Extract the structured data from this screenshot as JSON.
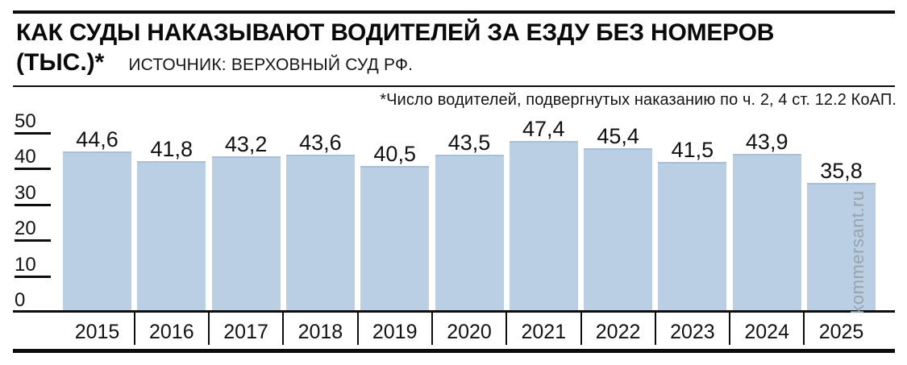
{
  "header": {
    "title_line1": "КАК СУДЫ НАКАЗЫВАЮТ ВОДИТЕЛЕЙ ЗА ЕЗДУ БЕЗ НОМЕРОВ",
    "title_unit": "(ТЫС.)*",
    "source": "ИСТОЧНИК: ВЕРХОВНЫЙ СУД РФ."
  },
  "footnote": "*Число водителей, подвергнутых наказанию по ч. 2, 4 ст. 12.2 КоАП.",
  "watermark": "kommersant.ru",
  "colors": {
    "bar_fill": "#bacfe4",
    "bar_edge": "#a8c0d7",
    "rule": "#0d0d0d",
    "text": "#111111",
    "watermark": "#98a3ac"
  },
  "chart_data": {
    "type": "bar",
    "title": "КАК СУДЫ НАКАЗЫВАЮТ ВОДИТЕЛЕЙ ЗА ЕЗДУ БЕЗ НОМЕРОВ (ТЫС.)*",
    "source": "ИСТОЧНИК: ВЕРХОВНЫЙ СУД РФ.",
    "note": "*Число водителей, подвергнутых наказанию по ч. 2, 4 ст. 12.2 КоАП.",
    "categories": [
      "2015",
      "2016",
      "2017",
      "2018",
      "2019",
      "2020",
      "2021",
      "2022",
      "2023",
      "2024",
      "2025"
    ],
    "values": [
      44.6,
      41.8,
      43.2,
      43.6,
      40.5,
      43.5,
      47.4,
      45.4,
      41.5,
      43.9,
      35.8
    ],
    "value_labels": [
      "44,6",
      "41,8",
      "43,2",
      "43,6",
      "40,5",
      "43,5",
      "47,4",
      "45,4",
      "41,5",
      "43,9",
      "35,8"
    ],
    "xlabel": "",
    "ylabel": "",
    "ylim": [
      0,
      50
    ],
    "yticks": [
      0,
      10,
      20,
      30,
      40,
      50
    ],
    "grid": false,
    "legend": false,
    "bar_labels_position": "above"
  }
}
